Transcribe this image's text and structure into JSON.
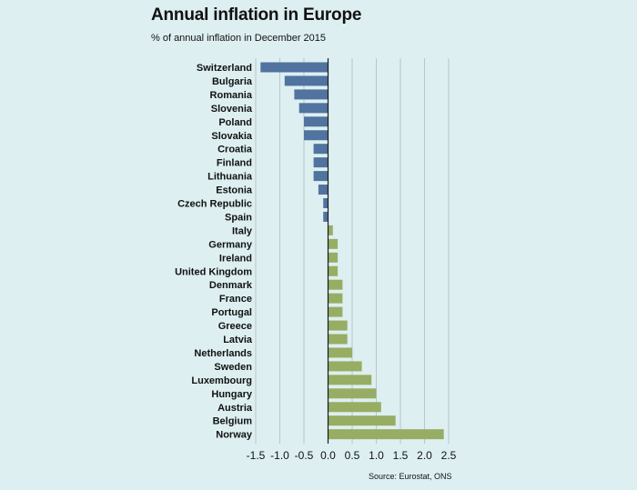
{
  "title": "Annual inflation in Europe",
  "subtitle": "% of annual inflation in December 2015",
  "source": "Source: Eurostat, ONS",
  "colors": {
    "negative": "#50739f",
    "positive": "#97ad64",
    "background": "#ddeff1"
  },
  "chart_data": {
    "type": "bar",
    "orientation": "horizontal",
    "title": "Annual inflation in Europe",
    "subtitle": "% of annual inflation in December 2015",
    "xlim": [
      -1.5,
      2.5
    ],
    "xticks": [
      -1.5,
      -1.0,
      -0.5,
      0.0,
      0.5,
      1.0,
      1.5,
      2.0,
      2.5
    ],
    "tick_labels": [
      "-1.5",
      "-1.0",
      "-0.5",
      "0.0",
      "0.5",
      "1.0",
      "1.5",
      "2.0",
      "2.5"
    ],
    "grid": true,
    "categories": [
      "Switzerland",
      "Bulgaria",
      "Romania",
      "Slovenia",
      "Poland",
      "Slovakia",
      "Croatia",
      "Finland",
      "Lithuania",
      "Estonia",
      "Czech Republic",
      "Spain",
      "Italy",
      "Germany",
      "Ireland",
      "United Kingdom",
      "Denmark",
      "France",
      "Portugal",
      "Greece",
      "Latvia",
      "Netherlands",
      "Sweden",
      "Luxembourg",
      "Hungary",
      "Austria",
      "Belgium",
      "Norway"
    ],
    "values": [
      -1.4,
      -0.9,
      -0.7,
      -0.6,
      -0.5,
      -0.5,
      -0.3,
      -0.3,
      -0.3,
      -0.2,
      -0.1,
      -0.1,
      0.1,
      0.2,
      0.2,
      0.2,
      0.3,
      0.3,
      0.3,
      0.4,
      0.4,
      0.5,
      0.7,
      0.9,
      1.0,
      1.1,
      1.4,
      2.4
    ]
  }
}
